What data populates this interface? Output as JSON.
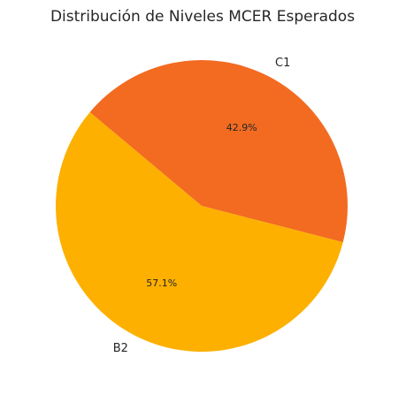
{
  "chart_data": {
    "type": "pie",
    "title": "Distribución de Niveles MCER Esperados",
    "categories": [
      "C1",
      "B2"
    ],
    "values": [
      42.9,
      57.1
    ],
    "value_labels": [
      "42.9%",
      "57.1%"
    ],
    "colors": [
      "#f26b21",
      "#fdb000"
    ]
  }
}
